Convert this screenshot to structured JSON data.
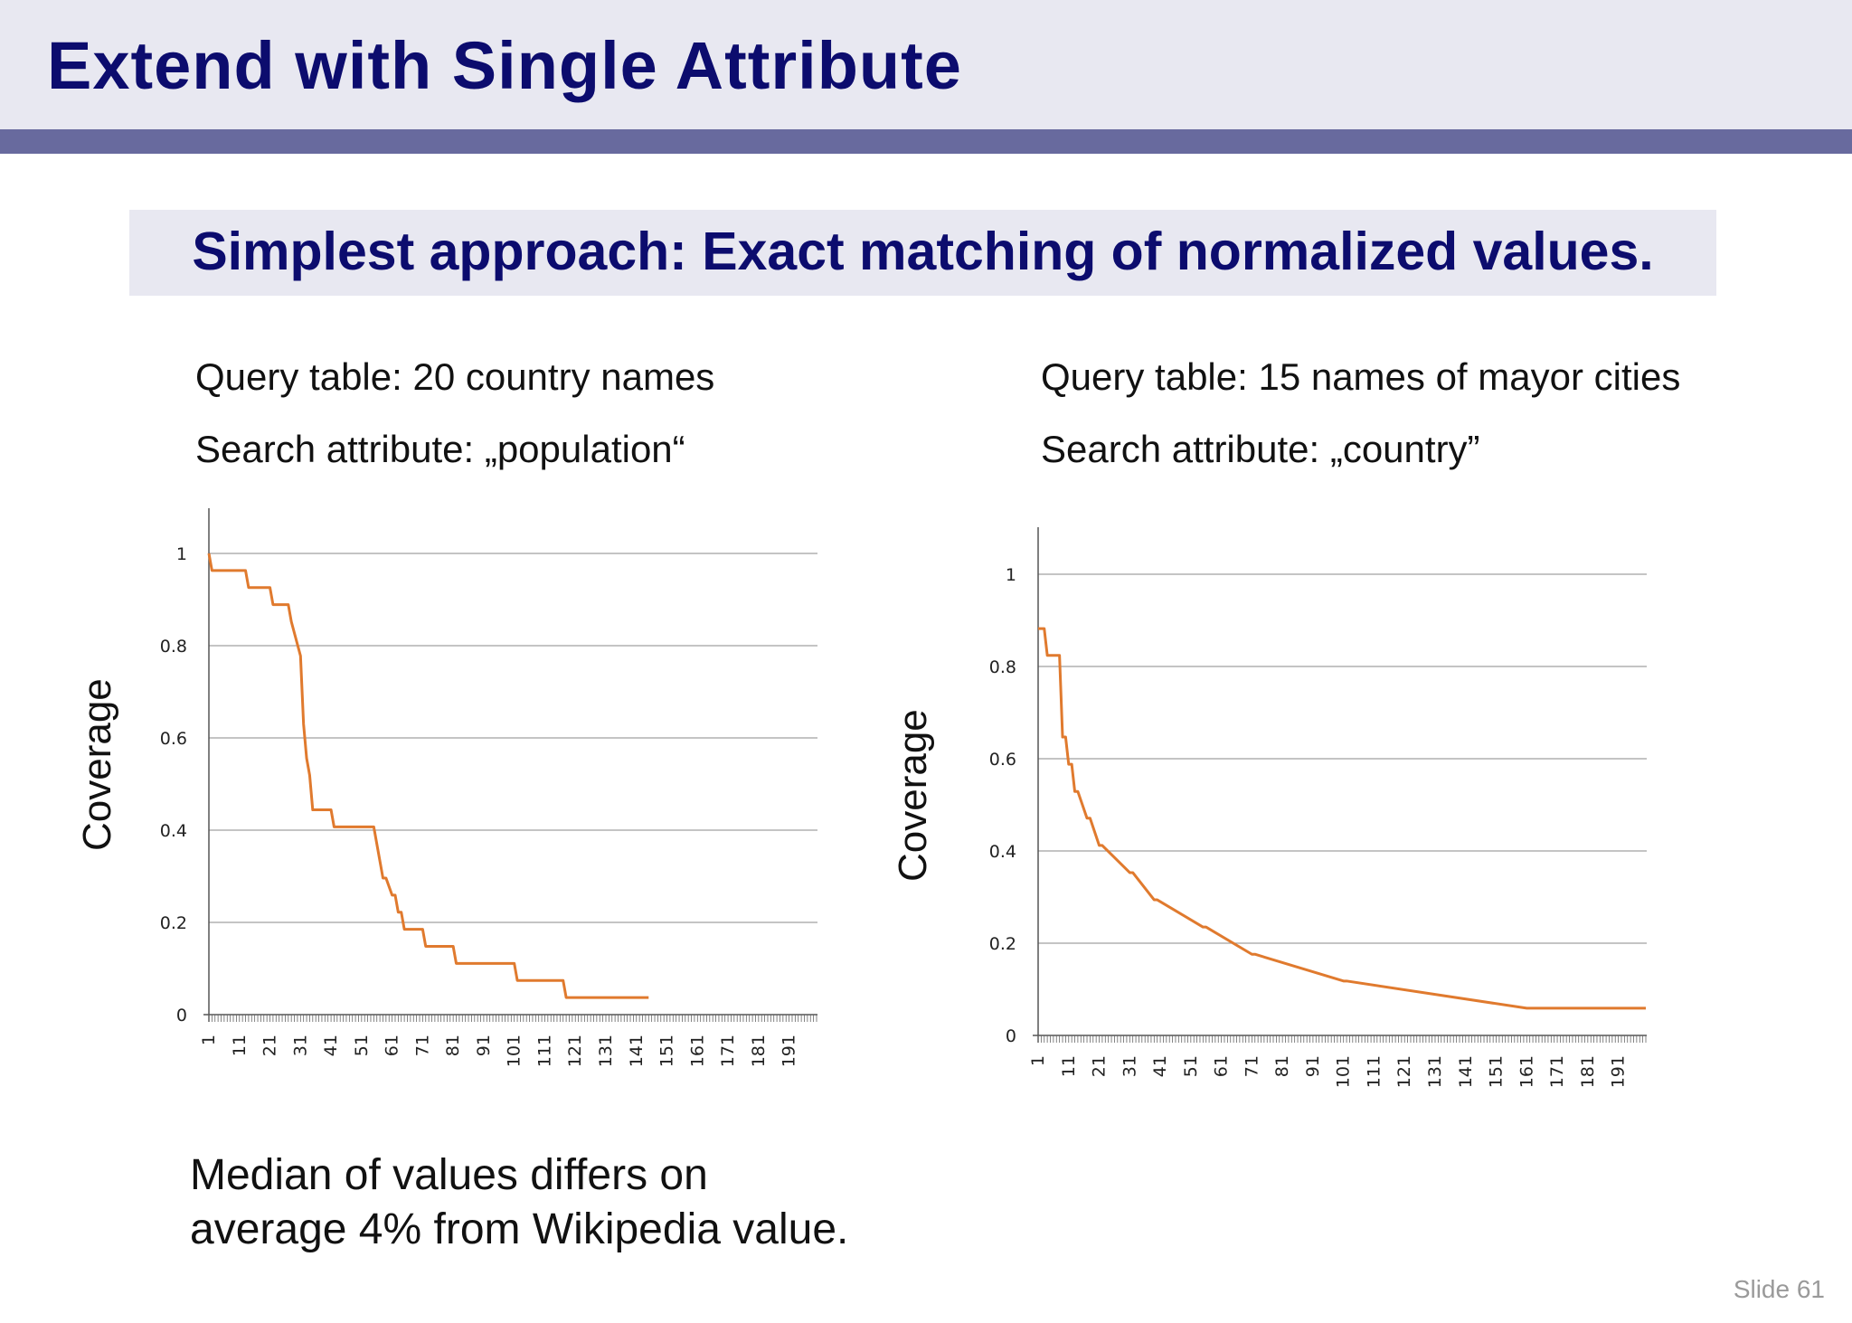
{
  "slide": {
    "title": "Extend with Single Attribute",
    "subtitle": "Simplest approach: Exact matching of normalized values.",
    "left_query": "Query table: 20 country names",
    "left_search": "Search attribute: „population“",
    "right_query": "Query table: 15 names of mayor cities",
    "right_search": "Search attribute: „country”",
    "footnote_line1": "Median of values differs on",
    "footnote_line2": "average 4% from Wikipedia value.",
    "slide_number": "Slide 61"
  },
  "colors": {
    "title_text": "#0c0c6e",
    "rule": "#686a9e",
    "band": "#e8e8f1",
    "series": "#e07a2e"
  },
  "chart_data": [
    {
      "type": "line",
      "ylabel": "Coverage",
      "ylim": [
        0,
        1
      ],
      "yticks": [
        0,
        0.2,
        0.4,
        0.6,
        0.8,
        1
      ],
      "yticklabels": [
        "0",
        "0.2",
        "0.4",
        "0.6",
        "0.8",
        "1"
      ],
      "xlim": [
        1,
        200
      ],
      "xticks": [
        1,
        11,
        21,
        31,
        41,
        51,
        61,
        71,
        81,
        91,
        101,
        111,
        121,
        131,
        141,
        151,
        161,
        171,
        181,
        191
      ],
      "grid": true,
      "series": [
        {
          "x": [
            1,
            2,
            13,
            14,
            21,
            22,
            27,
            28,
            31,
            32,
            33,
            34,
            35,
            36,
            41,
            42,
            55,
            56,
            58,
            59,
            61,
            62,
            63,
            64,
            65,
            66,
            71,
            72,
            81,
            82,
            89,
            90,
            91,
            92,
            101,
            102,
            111,
            112,
            117,
            118,
            128,
            129,
            145
          ],
          "y": [
            1,
            0.963,
            0.963,
            0.926,
            0.926,
            0.889,
            0.889,
            0.852,
            0.778,
            0.63,
            0.556,
            0.519,
            0.444,
            0.444,
            0.444,
            0.407,
            0.407,
            0.37,
            0.296,
            0.296,
            0.259,
            0.259,
            0.222,
            0.222,
            0.185,
            0.185,
            0.185,
            0.148,
            0.148,
            0.111,
            0.111,
            0.111,
            0.111,
            0.111,
            0.111,
            0.074,
            0.074,
            0.074,
            0.074,
            0.037,
            0.037,
            0.037,
            0.037
          ]
        }
      ]
    },
    {
      "type": "line",
      "ylabel": "Coverage",
      "ylim": [
        0,
        1
      ],
      "yticks": [
        0,
        0.2,
        0.4,
        0.6,
        0.8,
        1
      ],
      "yticklabels": [
        "0",
        "0.2",
        "0.4",
        "0.6",
        "0.8",
        "1"
      ],
      "xlim": [
        1,
        200
      ],
      "xticks": [
        1,
        11,
        21,
        31,
        41,
        51,
        61,
        71,
        81,
        91,
        101,
        111,
        121,
        131,
        141,
        151,
        161,
        171,
        181,
        191
      ],
      "grid": true,
      "series": [
        {
          "x": [
            1,
            3,
            4,
            8,
            9,
            10,
            11,
            12,
            13,
            14,
            17,
            18,
            21,
            22,
            31,
            32,
            39,
            40,
            55,
            56,
            71,
            72,
            101,
            102,
            161,
            162,
            200
          ],
          "y": [
            0.882,
            0.882,
            0.824,
            0.824,
            0.647,
            0.647,
            0.588,
            0.588,
            0.529,
            0.529,
            0.471,
            0.471,
            0.412,
            0.412,
            0.353,
            0.353,
            0.294,
            0.294,
            0.235,
            0.235,
            0.176,
            0.176,
            0.118,
            0.118,
            0.059,
            0.059,
            0.059
          ]
        }
      ]
    }
  ]
}
